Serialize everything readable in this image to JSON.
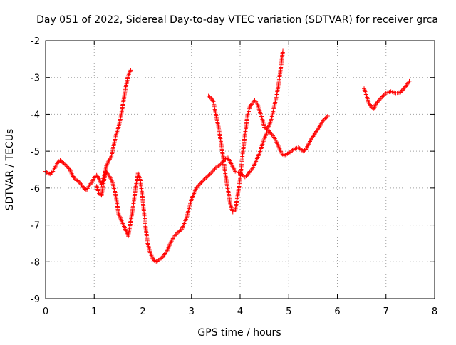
{
  "chart_data": {
    "type": "scatter",
    "title": "Day 051 of 2022, Sidereal Day-to-day VTEC variation (SDTVAR) for receiver grca",
    "xlabel": "GPS time / hours",
    "ylabel": "SDTVAR / TECUs",
    "xlim": [
      0,
      8
    ],
    "ylim": [
      -9,
      -2
    ],
    "x_ticks": [
      0,
      1,
      2,
      3,
      4,
      5,
      6,
      7,
      8
    ],
    "y_ticks": [
      -9,
      -8,
      -7,
      -6,
      -5,
      -4,
      -3,
      -2
    ],
    "x_tick_labels": [
      "0",
      "1",
      "2",
      "3",
      "4",
      "5",
      "6",
      "7",
      "8"
    ],
    "y_tick_labels": [
      "-9",
      "-8",
      "-7",
      "-6",
      "-5",
      "-4",
      "-3",
      "-2"
    ],
    "grid": true,
    "marker": "plus",
    "color": "#ff0000",
    "series": [
      {
        "points": [
          [
            0.0,
            -5.55
          ],
          [
            0.05,
            -5.6
          ],
          [
            0.1,
            -5.62
          ],
          [
            0.15,
            -5.55
          ],
          [
            0.2,
            -5.42
          ],
          [
            0.25,
            -5.3
          ],
          [
            0.3,
            -5.25
          ],
          [
            0.35,
            -5.3
          ],
          [
            0.42,
            -5.38
          ],
          [
            0.5,
            -5.5
          ],
          [
            0.55,
            -5.65
          ],
          [
            0.6,
            -5.75
          ],
          [
            0.7,
            -5.85
          ],
          [
            0.8,
            -6.02
          ],
          [
            0.85,
            -6.05
          ],
          [
            0.9,
            -5.92
          ],
          [
            0.95,
            -5.85
          ],
          [
            1.0,
            -5.72
          ],
          [
            1.05,
            -5.65
          ],
          [
            1.1,
            -5.75
          ],
          [
            1.15,
            -5.9
          ],
          [
            1.2,
            -5.7
          ],
          [
            1.23,
            -5.55
          ],
          [
            1.3,
            -5.65
          ],
          [
            1.38,
            -5.85
          ],
          [
            1.45,
            -6.25
          ],
          [
            1.5,
            -6.7
          ],
          [
            1.55,
            -6.85
          ],
          [
            1.6,
            -7.0
          ],
          [
            1.65,
            -7.15
          ],
          [
            1.7,
            -7.3
          ],
          [
            1.75,
            -6.9
          ],
          [
            1.8,
            -6.5
          ],
          [
            1.85,
            -6.0
          ],
          [
            1.9,
            -5.6
          ],
          [
            1.95,
            -5.8
          ],
          [
            2.0,
            -6.35
          ],
          [
            2.05,
            -7.0
          ],
          [
            2.1,
            -7.5
          ],
          [
            2.15,
            -7.75
          ],
          [
            2.2,
            -7.9
          ],
          [
            2.25,
            -8.0
          ],
          [
            2.3,
            -7.98
          ],
          [
            2.4,
            -7.88
          ],
          [
            2.5,
            -7.7
          ],
          [
            2.6,
            -7.4
          ],
          [
            2.7,
            -7.22
          ],
          [
            2.8,
            -7.12
          ],
          [
            2.9,
            -6.8
          ],
          [
            3.0,
            -6.3
          ],
          [
            3.1,
            -6.0
          ],
          [
            3.2,
            -5.85
          ],
          [
            3.3,
            -5.72
          ],
          [
            3.4,
            -5.6
          ],
          [
            3.5,
            -5.45
          ],
          [
            3.6,
            -5.35
          ],
          [
            3.7,
            -5.2
          ],
          [
            3.75,
            -5.18
          ],
          [
            3.8,
            -5.3
          ],
          [
            3.9,
            -5.55
          ],
          [
            4.0,
            -5.6
          ],
          [
            4.1,
            -5.7
          ],
          [
            4.15,
            -5.65
          ],
          [
            4.2,
            -5.55
          ],
          [
            4.25,
            -5.48
          ],
          [
            4.3,
            -5.35
          ],
          [
            4.4,
            -5.05
          ],
          [
            4.5,
            -4.65
          ],
          [
            4.55,
            -4.5
          ],
          [
            4.6,
            -4.45
          ],
          [
            4.65,
            -4.55
          ],
          [
            4.7,
            -4.62
          ],
          [
            4.75,
            -4.75
          ],
          [
            4.8,
            -4.9
          ],
          [
            4.85,
            -5.05
          ],
          [
            4.9,
            -5.12
          ],
          [
            5.0,
            -5.05
          ],
          [
            5.1,
            -4.95
          ],
          [
            5.2,
            -4.9
          ],
          [
            5.3,
            -5.0
          ],
          [
            5.35,
            -4.95
          ],
          [
            5.45,
            -4.7
          ],
          [
            5.55,
            -4.5
          ],
          [
            5.65,
            -4.3
          ],
          [
            5.7,
            -4.18
          ],
          [
            5.8,
            -4.05
          ]
        ]
      },
      {
        "points": [
          [
            1.05,
            -5.95
          ],
          [
            1.1,
            -6.15
          ],
          [
            1.15,
            -6.2
          ],
          [
            1.2,
            -5.8
          ],
          [
            1.25,
            -5.4
          ],
          [
            1.3,
            -5.25
          ],
          [
            1.35,
            -5.15
          ],
          [
            1.4,
            -4.85
          ],
          [
            1.45,
            -4.55
          ],
          [
            1.5,
            -4.35
          ],
          [
            1.55,
            -4.05
          ],
          [
            1.6,
            -3.65
          ],
          [
            1.65,
            -3.25
          ],
          [
            1.7,
            -2.95
          ],
          [
            1.75,
            -2.8
          ]
        ]
      },
      {
        "points": [
          [
            3.35,
            -3.5
          ],
          [
            3.4,
            -3.55
          ],
          [
            3.45,
            -3.65
          ],
          [
            3.5,
            -4.0
          ],
          [
            3.55,
            -4.3
          ],
          [
            3.6,
            -4.7
          ],
          [
            3.65,
            -5.15
          ],
          [
            3.7,
            -5.65
          ],
          [
            3.75,
            -6.05
          ],
          [
            3.8,
            -6.45
          ],
          [
            3.85,
            -6.65
          ],
          [
            3.9,
            -6.6
          ],
          [
            3.95,
            -6.2
          ],
          [
            4.0,
            -5.75
          ],
          [
            4.05,
            -5.1
          ],
          [
            4.1,
            -4.55
          ],
          [
            4.15,
            -4.05
          ],
          [
            4.2,
            -3.8
          ],
          [
            4.25,
            -3.7
          ],
          [
            4.3,
            -3.62
          ],
          [
            4.35,
            -3.7
          ],
          [
            4.4,
            -3.9
          ],
          [
            4.45,
            -4.1
          ],
          [
            4.5,
            -4.35
          ],
          [
            4.55,
            -4.4
          ],
          [
            4.6,
            -4.3
          ],
          [
            4.65,
            -4.1
          ],
          [
            4.7,
            -3.8
          ],
          [
            4.75,
            -3.5
          ],
          [
            4.8,
            -3.1
          ],
          [
            4.85,
            -2.6
          ],
          [
            4.88,
            -2.28
          ]
        ]
      },
      {
        "points": [
          [
            6.55,
            -3.3
          ],
          [
            6.6,
            -3.5
          ],
          [
            6.65,
            -3.7
          ],
          [
            6.7,
            -3.8
          ],
          [
            6.75,
            -3.85
          ],
          [
            6.8,
            -3.7
          ],
          [
            6.9,
            -3.55
          ],
          [
            7.0,
            -3.42
          ],
          [
            7.1,
            -3.38
          ],
          [
            7.2,
            -3.42
          ],
          [
            7.3,
            -3.4
          ],
          [
            7.4,
            -3.25
          ],
          [
            7.48,
            -3.1
          ]
        ]
      }
    ]
  }
}
